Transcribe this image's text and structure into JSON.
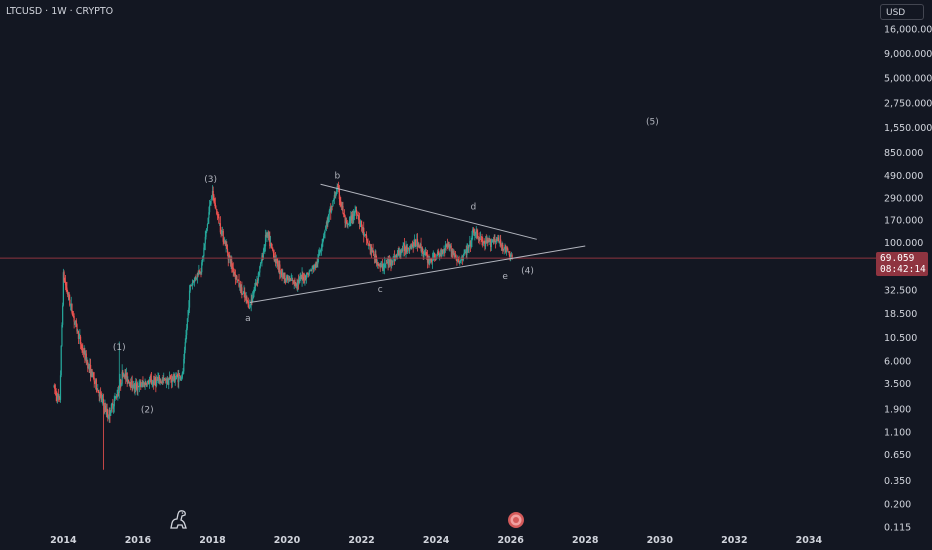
{
  "header": {
    "symbol_line": "LTCUSD · 1W · CRYPTO"
  },
  "axis": {
    "currency": "USD"
  },
  "price_badge": {
    "price": "69.059",
    "countdown": "08:42:14"
  },
  "colors": {
    "background": "#131722",
    "up": "#26a69a",
    "down": "#ef5350",
    "price_line": "#8f3440",
    "trendline": "#b2b5be"
  },
  "icons": {
    "logo": "tradingview-dino-icon",
    "event": "earnings-event-icon"
  },
  "chart_data": {
    "type": "candlestick",
    "title": "LTCUSD · 1W · CRYPTO",
    "y_scale": "log",
    "xlim": [
      2012.3,
      2035.8
    ],
    "ylim": [
      0.1,
      32000
    ],
    "x_ticks": [
      "2014",
      "2016",
      "2018",
      "2020",
      "2022",
      "2024",
      "2026",
      "2028",
      "2030",
      "2032",
      "2034"
    ],
    "y_ticks": [
      "16,000.000",
      "9,000.000",
      "5,000.000",
      "2,750.000",
      "1,550.000",
      "850.000",
      "490.000",
      "290.000",
      "170.000",
      "100.000",
      "32.500",
      "18.500",
      "10.500",
      "6.000",
      "3.500",
      "1.900",
      "1.100",
      "0.650",
      "0.350",
      "0.200",
      "0.115"
    ],
    "last_price": 69.059,
    "price_path": [
      [
        2013.75,
        3.2
      ],
      [
        2013.9,
        2.2
      ],
      [
        2014.0,
        45
      ],
      [
        2014.2,
        22
      ],
      [
        2014.5,
        8
      ],
      [
        2014.8,
        4
      ],
      [
        2015.2,
        1.6
      ],
      [
        2015.45,
        2.8
      ],
      [
        2015.6,
        4.5
      ],
      [
        2015.9,
        3.2
      ],
      [
        2016.3,
        3.6
      ],
      [
        2016.8,
        3.8
      ],
      [
        2017.2,
        4.2
      ],
      [
        2017.4,
        35
      ],
      [
        2017.7,
        55
      ],
      [
        2017.98,
        330
      ],
      [
        2018.2,
        150
      ],
      [
        2018.5,
        60
      ],
      [
        2018.8,
        30
      ],
      [
        2019.0,
        22
      ],
      [
        2019.3,
        60
      ],
      [
        2019.45,
        125
      ],
      [
        2019.7,
        65
      ],
      [
        2019.9,
        45
      ],
      [
        2020.2,
        38
      ],
      [
        2020.5,
        45
      ],
      [
        2020.8,
        60
      ],
      [
        2021.0,
        130
      ],
      [
        2021.35,
        370
      ],
      [
        2021.6,
        140
      ],
      [
        2021.85,
        220
      ],
      [
        2022.1,
        110
      ],
      [
        2022.5,
        55
      ],
      [
        2022.8,
        65
      ],
      [
        2023.1,
        85
      ],
      [
        2023.5,
        100
      ],
      [
        2023.8,
        65
      ],
      [
        2024.1,
        75
      ],
      [
        2024.3,
        100
      ],
      [
        2024.6,
        62
      ],
      [
        2024.9,
        90
      ],
      [
        2025.0,
        130
      ],
      [
        2025.3,
        95
      ],
      [
        2025.6,
        110
      ],
      [
        2025.8,
        90
      ],
      [
        2026.05,
        69.059
      ]
    ],
    "annotations": [
      {
        "label": "(1)",
        "x": 2015.5,
        "y": 7.8
      },
      {
        "label": "(2)",
        "x": 2016.25,
        "y": 1.75
      },
      {
        "label": "(3)",
        "x": 2017.95,
        "y": 420
      },
      {
        "label": "a",
        "x": 2018.95,
        "y": 15.5
      },
      {
        "label": "b",
        "x": 2021.35,
        "y": 460
      },
      {
        "label": "c",
        "x": 2022.5,
        "y": 31
      },
      {
        "label": "d",
        "x": 2025.0,
        "y": 220
      },
      {
        "label": "e",
        "x": 2025.85,
        "y": 42
      },
      {
        "label": "(4)",
        "x": 2026.45,
        "y": 48
      },
      {
        "label": "(5)",
        "x": 2029.8,
        "y": 1650
      }
    ],
    "trendlines": [
      {
        "name": "upper",
        "from": [
          2020.9,
          400
        ],
        "to": [
          2026.7,
          108
        ]
      },
      {
        "name": "lower",
        "from": [
          2019.0,
          24
        ],
        "to": [
          2028.0,
          92
        ]
      }
    ]
  }
}
